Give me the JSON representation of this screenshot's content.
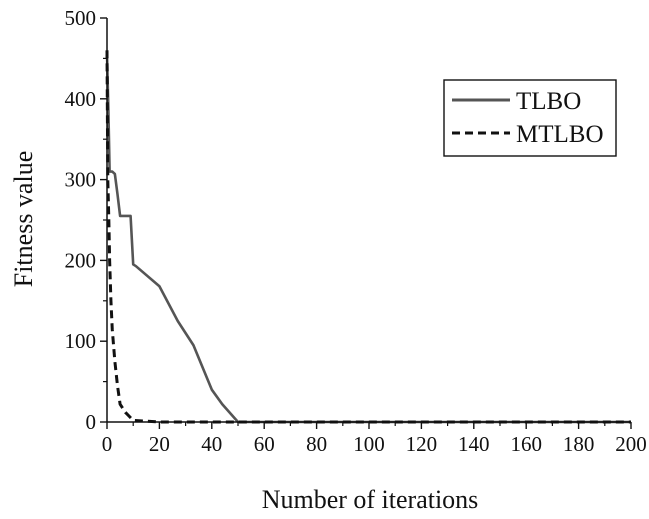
{
  "chart_data": {
    "type": "line",
    "title": "",
    "xlabel": "Number of iterations",
    "ylabel": "Fitness value",
    "xlim": [
      0,
      200
    ],
    "ylim": [
      0,
      500
    ],
    "xticks": [
      0,
      20,
      40,
      60,
      80,
      100,
      120,
      140,
      160,
      180,
      200
    ],
    "yticks": [
      0,
      100,
      200,
      300,
      400,
      500
    ],
    "grid": false,
    "legend_position": "top-right",
    "series": [
      {
        "name": "TLBO",
        "style": "solid",
        "color": "#555555",
        "x": [
          0,
          0.5,
          1,
          2,
          3,
          4,
          5,
          9,
          10,
          11,
          20,
          27,
          33,
          40,
          44,
          50,
          60,
          80,
          100,
          120,
          140,
          160,
          180,
          200
        ],
        "y": [
          455,
          390,
          310,
          310,
          307,
          282,
          255,
          255,
          195,
          193,
          168,
          125,
          95,
          40,
          22,
          0,
          0,
          0,
          0,
          0,
          0,
          0,
          0,
          0
        ]
      },
      {
        "name": "MTLBO",
        "style": "dashed",
        "color": "#111111",
        "x": [
          0,
          0.3,
          0.7,
          1,
          1.5,
          2,
          3,
          4,
          5,
          7,
          10,
          15,
          20,
          50,
          100,
          150,
          200
        ],
        "y": [
          460,
          300,
          250,
          200,
          150,
          115,
          75,
          45,
          22,
          12,
          2,
          1,
          0,
          0,
          0,
          0,
          0
        ]
      }
    ]
  }
}
